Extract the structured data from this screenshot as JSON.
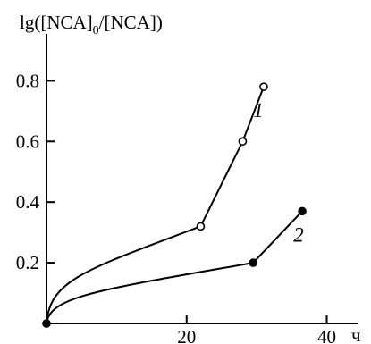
{
  "chart_data": {
    "type": "line",
    "ylabel_prefix": "lg",
    "ylabel_num": "([NCA]",
    "ylabel_sub": "0",
    "ylabel_rest": "/[NCA])",
    "x_unit": "ч",
    "xlim": [
      0,
      43
    ],
    "ylim": [
      0,
      0.86
    ],
    "x_ticks": [
      20,
      40
    ],
    "x_tick_labels": [
      "20",
      "40"
    ],
    "y_ticks": [
      0.2,
      0.4,
      0.6,
      0.8
    ],
    "y_tick_labels": [
      "0.2",
      "0.4",
      "0.6",
      "0.8"
    ],
    "series": [
      {
        "name": "1",
        "marker": "open-circle",
        "x": [
          0,
          22,
          28,
          31
        ],
        "y": [
          0,
          0.32,
          0.6,
          0.78
        ]
      },
      {
        "name": "2",
        "marker": "filled-circle",
        "x": [
          0,
          29.5,
          36.5
        ],
        "y": [
          0,
          0.2,
          0.37
        ]
      }
    ]
  }
}
